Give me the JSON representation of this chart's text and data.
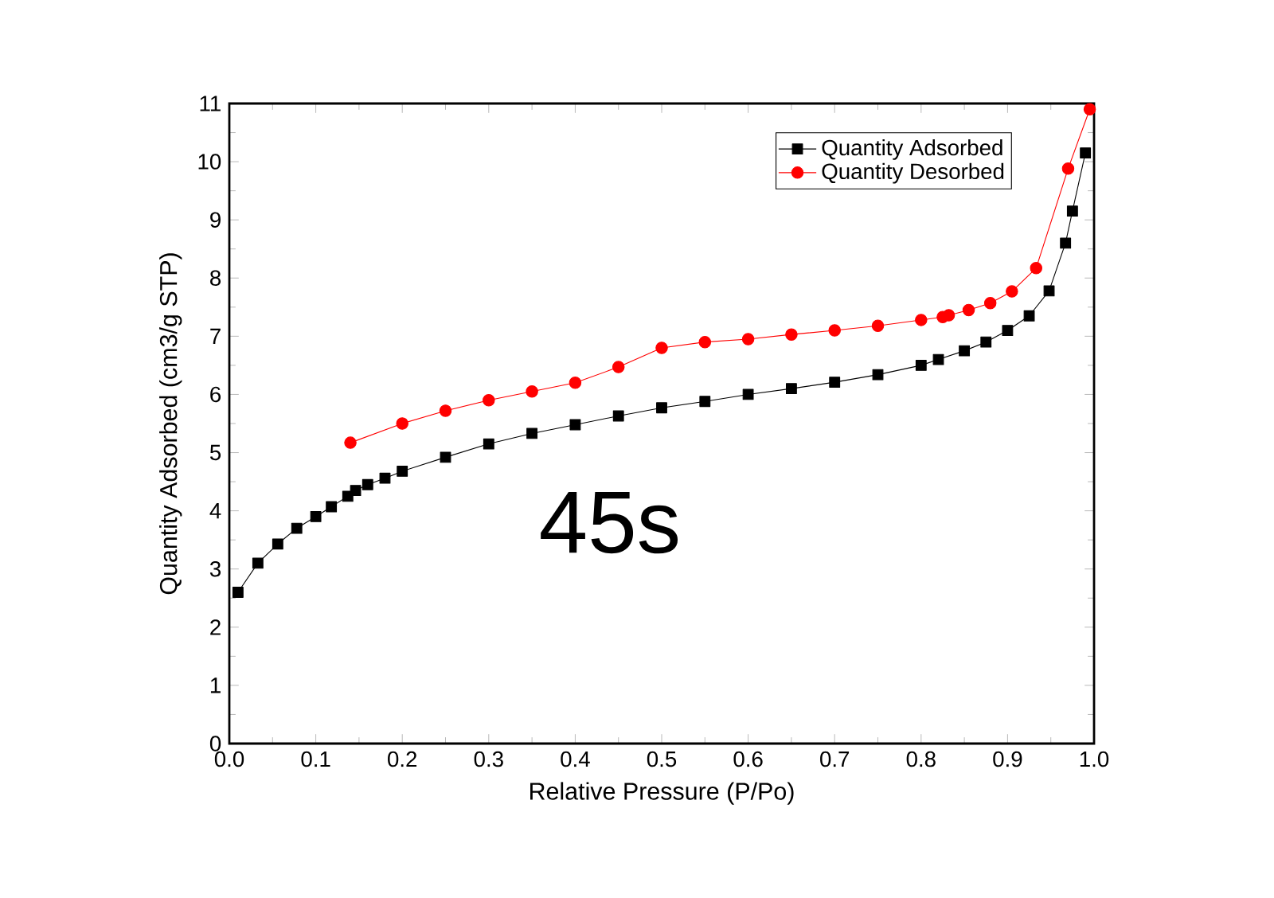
{
  "chart_data": {
    "type": "line",
    "xlabel": "Relative Pressure (P/Po)",
    "ylabel": "Quantity Adsorbed (cm3/g STP)",
    "xlim": [
      0.0,
      1.0
    ],
    "ylim": [
      0,
      11
    ],
    "xticks": [
      {
        "value": 0,
        "label": "0.0"
      },
      0.1,
      0.2,
      0.3,
      0.4,
      0.5,
      0.6,
      0.7,
      0.8,
      0.9,
      {
        "value": 1,
        "label": "1.0"
      }
    ],
    "yticks": [
      0,
      1,
      2,
      3,
      4,
      5,
      6,
      7,
      8,
      9,
      10,
      11
    ],
    "grid": false,
    "legend": "top right",
    "annotations": [
      "45s"
    ],
    "series": [
      {
        "name": "Quantity Adsorbed",
        "color": "#000000",
        "marker": "square",
        "x": [
          0.01,
          0.033,
          0.056,
          0.078,
          0.1,
          0.118,
          0.137,
          0.146,
          0.16,
          0.18,
          0.2,
          0.25,
          0.3,
          0.35,
          0.4,
          0.45,
          0.5,
          0.55,
          0.6,
          0.65,
          0.7,
          0.75,
          0.8,
          0.82,
          0.85,
          0.875,
          0.9,
          0.925,
          0.948,
          0.967,
          0.975,
          0.99
        ],
        "values": [
          2.6,
          3.1,
          3.43,
          3.7,
          3.9,
          4.07,
          4.25,
          4.35,
          4.45,
          4.56,
          4.68,
          4.92,
          5.15,
          5.33,
          5.48,
          5.63,
          5.77,
          5.88,
          6.0,
          6.1,
          6.21,
          6.34,
          6.5,
          6.6,
          6.75,
          6.9,
          7.1,
          7.35,
          7.78,
          8.6,
          9.15,
          10.15
        ]
      },
      {
        "name": "Quantity Desorbed",
        "color": "#ff0000",
        "marker": "circle",
        "x": [
          0.14,
          0.2,
          0.25,
          0.3,
          0.35,
          0.4,
          0.45,
          0.5,
          0.55,
          0.6,
          0.65,
          0.7,
          0.75,
          0.8,
          0.825,
          0.832,
          0.855,
          0.88,
          0.905,
          0.933,
          0.97,
          0.995
        ],
        "values": [
          5.17,
          5.5,
          5.72,
          5.9,
          6.05,
          6.2,
          6.47,
          6.8,
          6.9,
          6.95,
          7.03,
          7.1,
          7.18,
          7.28,
          7.33,
          7.36,
          7.45,
          7.57,
          7.77,
          8.17,
          9.88,
          10.9
        ]
      }
    ]
  }
}
